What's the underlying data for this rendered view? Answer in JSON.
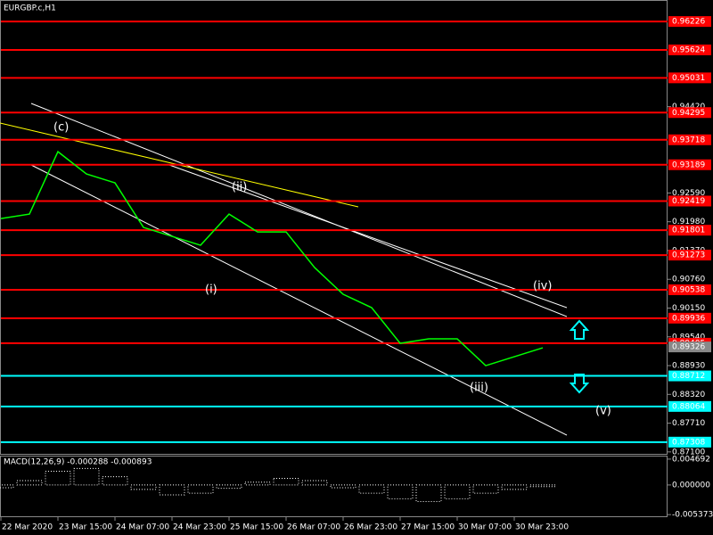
{
  "chart_data": [
    {
      "type": "line",
      "title": "EURGBP.c,H1",
      "x": [
        0,
        8,
        16,
        24,
        32,
        40,
        48,
        56,
        64,
        72,
        80,
        88,
        96,
        104,
        112,
        120,
        128,
        136,
        144,
        152
      ],
      "values": [
        0.92048,
        0.92143,
        0.93466,
        0.92994,
        0.92805,
        0.9186,
        0.91671,
        0.91482,
        0.92143,
        0.91765,
        0.91765,
        0.91009,
        0.90442,
        0.90159,
        0.89403,
        0.89497,
        0.89497,
        0.8893,
        0.89119,
        0.89308
      ],
      "color": "#00ff00",
      "xlim": [
        0,
        187
      ],
      "ylim": [
        0.8704,
        0.96682
      ],
      "xticks": [
        {
          "value": 0,
          "label": "22 Mar 2020"
        },
        {
          "value": 16,
          "label": "23 Mar 15:00"
        },
        {
          "value": 32,
          "label": "24 Mar 07:00"
        },
        {
          "value": 48,
          "label": "24 Mar 23:00"
        },
        {
          "value": 64,
          "label": "25 Mar 15:00"
        },
        {
          "value": 80,
          "label": "26 Mar 07:00"
        },
        {
          "value": 96,
          "label": "26 Mar 23:00"
        },
        {
          "value": 112,
          "label": "27 Mar 15:00"
        },
        {
          "value": 128,
          "label": "30 Mar 07:00"
        },
        {
          "value": 144,
          "label": "30 Mar 23:00"
        }
      ],
      "yticks": [
        {
          "value": 0.9442,
          "label": "0.94420"
        },
        {
          "value": 0.9259,
          "label": "0.92590"
        },
        {
          "value": 0.9198,
          "label": "0.91980"
        },
        {
          "value": 0.9137,
          "label": "0.91370"
        },
        {
          "value": 0.9076,
          "label": "0.90760"
        },
        {
          "value": 0.9015,
          "label": "0.90150"
        },
        {
          "value": 0.8954,
          "label": "0.89540"
        },
        {
          "value": 0.8893,
          "label": "0.88930"
        },
        {
          "value": 0.8832,
          "label": "0.88320"
        },
        {
          "value": 0.8771,
          "label": "0.87710"
        },
        {
          "value": 0.871,
          "label": "0.87100"
        }
      ],
      "resistance_levels": {
        "color": "#ff0000",
        "values": [
          0.96226,
          0.95624,
          0.95031,
          0.94295,
          0.93718,
          0.93189,
          0.92419,
          0.91801,
          0.91273,
          0.90538,
          0.89936,
          0.89405
        ]
      },
      "support_levels": {
        "color": "#00ffff",
        "values": [
          0.88712,
          0.88064,
          0.87308
        ]
      },
      "current_price": 0.89326,
      "wave_labels": [
        "(c)",
        "(i)",
        "(ii)",
        "(iii)",
        "(iv)",
        "(v)"
      ]
    },
    {
      "type": "bar",
      "title": "MACD(12,26,9) -0.000288 -0.000893",
      "x": [
        0,
        8,
        16,
        24,
        32,
        40,
        48,
        56,
        64,
        72,
        80,
        88,
        96,
        104,
        112,
        120,
        128,
        136,
        144,
        152
      ],
      "values": [
        -0.0005,
        0.0008,
        0.0025,
        0.003,
        0.0015,
        -0.0008,
        -0.0018,
        -0.0015,
        -0.0006,
        0.0005,
        0.0012,
        0.0008,
        -0.0005,
        -0.0015,
        -0.0025,
        -0.003,
        -0.0025,
        -0.0015,
        -0.0008,
        -0.0003
      ],
      "color": "#ffffff",
      "ylim": [
        -0.00584,
        0.00516
      ],
      "yticks": [
        0.004692,
        {
          "value": 0,
          "label": "0.000000"
        },
        -0.005373
      ]
    }
  ]
}
